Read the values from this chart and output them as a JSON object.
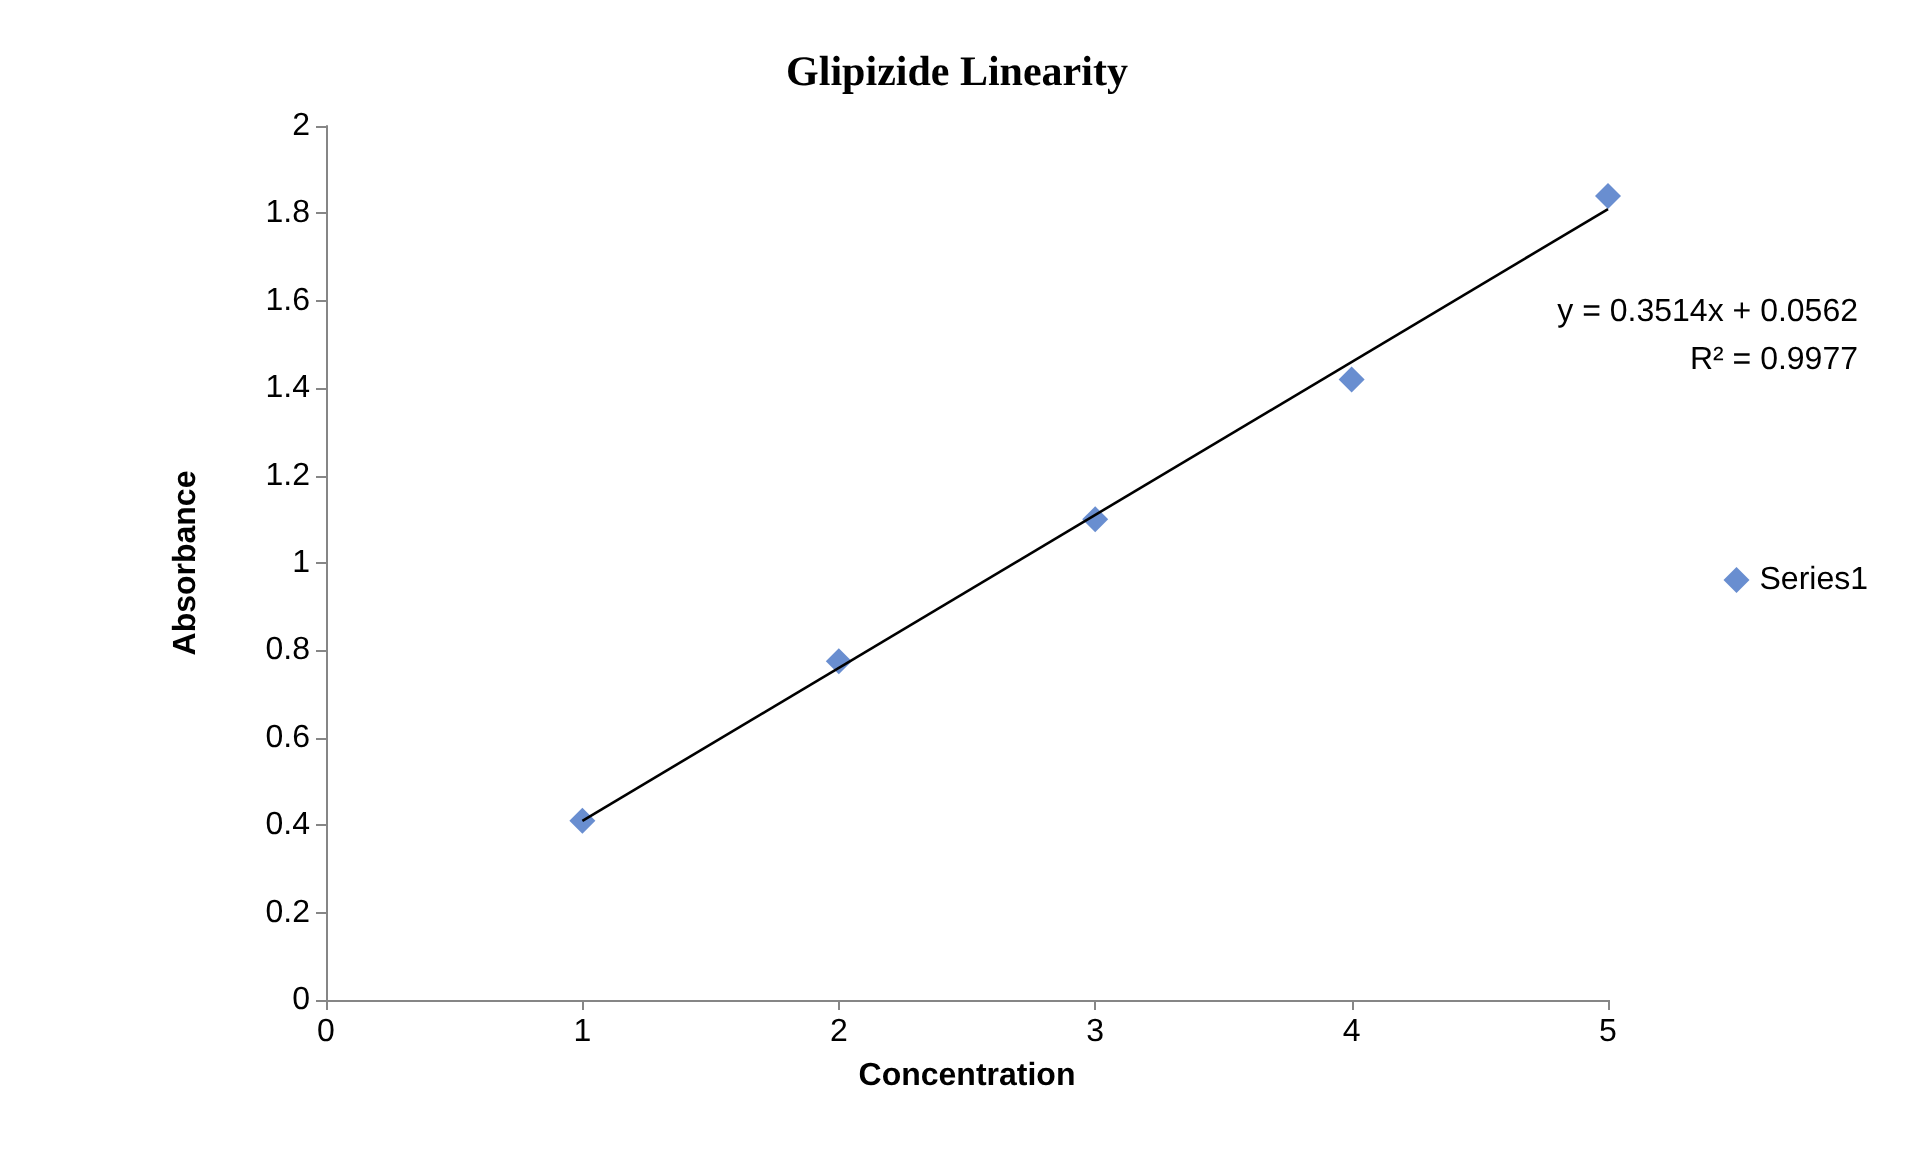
{
  "chart_data": {
    "type": "scatter",
    "title": "Glipizide Linearity",
    "xlabel": "Concentration",
    "ylabel": "Absorbance",
    "x": [
      1,
      2,
      3,
      4,
      5
    ],
    "series": [
      {
        "name": "Series1",
        "color": "#4472c4",
        "values": [
          0.41,
          0.775,
          1.1,
          1.42,
          1.84
        ],
        "marker": "diamond"
      },
      {
        "type": "line",
        "color": "#000000",
        "x": [
          1,
          5
        ],
        "values": [
          0.41,
          1.81
        ],
        "marker": "none",
        "line_style": "solid"
      }
    ],
    "annotations": [
      "y = 0.3514x + 0.0562",
      "R² = 0.9977"
    ],
    "xlim": [
      0,
      5
    ],
    "xticks": [
      0,
      1,
      2,
      3,
      4,
      5
    ],
    "ylim": [
      0,
      2
    ],
    "yticks": [
      0,
      0.2,
      0.4,
      0.6,
      0.8,
      1,
      1.2,
      1.4,
      1.6,
      1.8,
      2
    ],
    "grid": false,
    "legend": "right"
  }
}
